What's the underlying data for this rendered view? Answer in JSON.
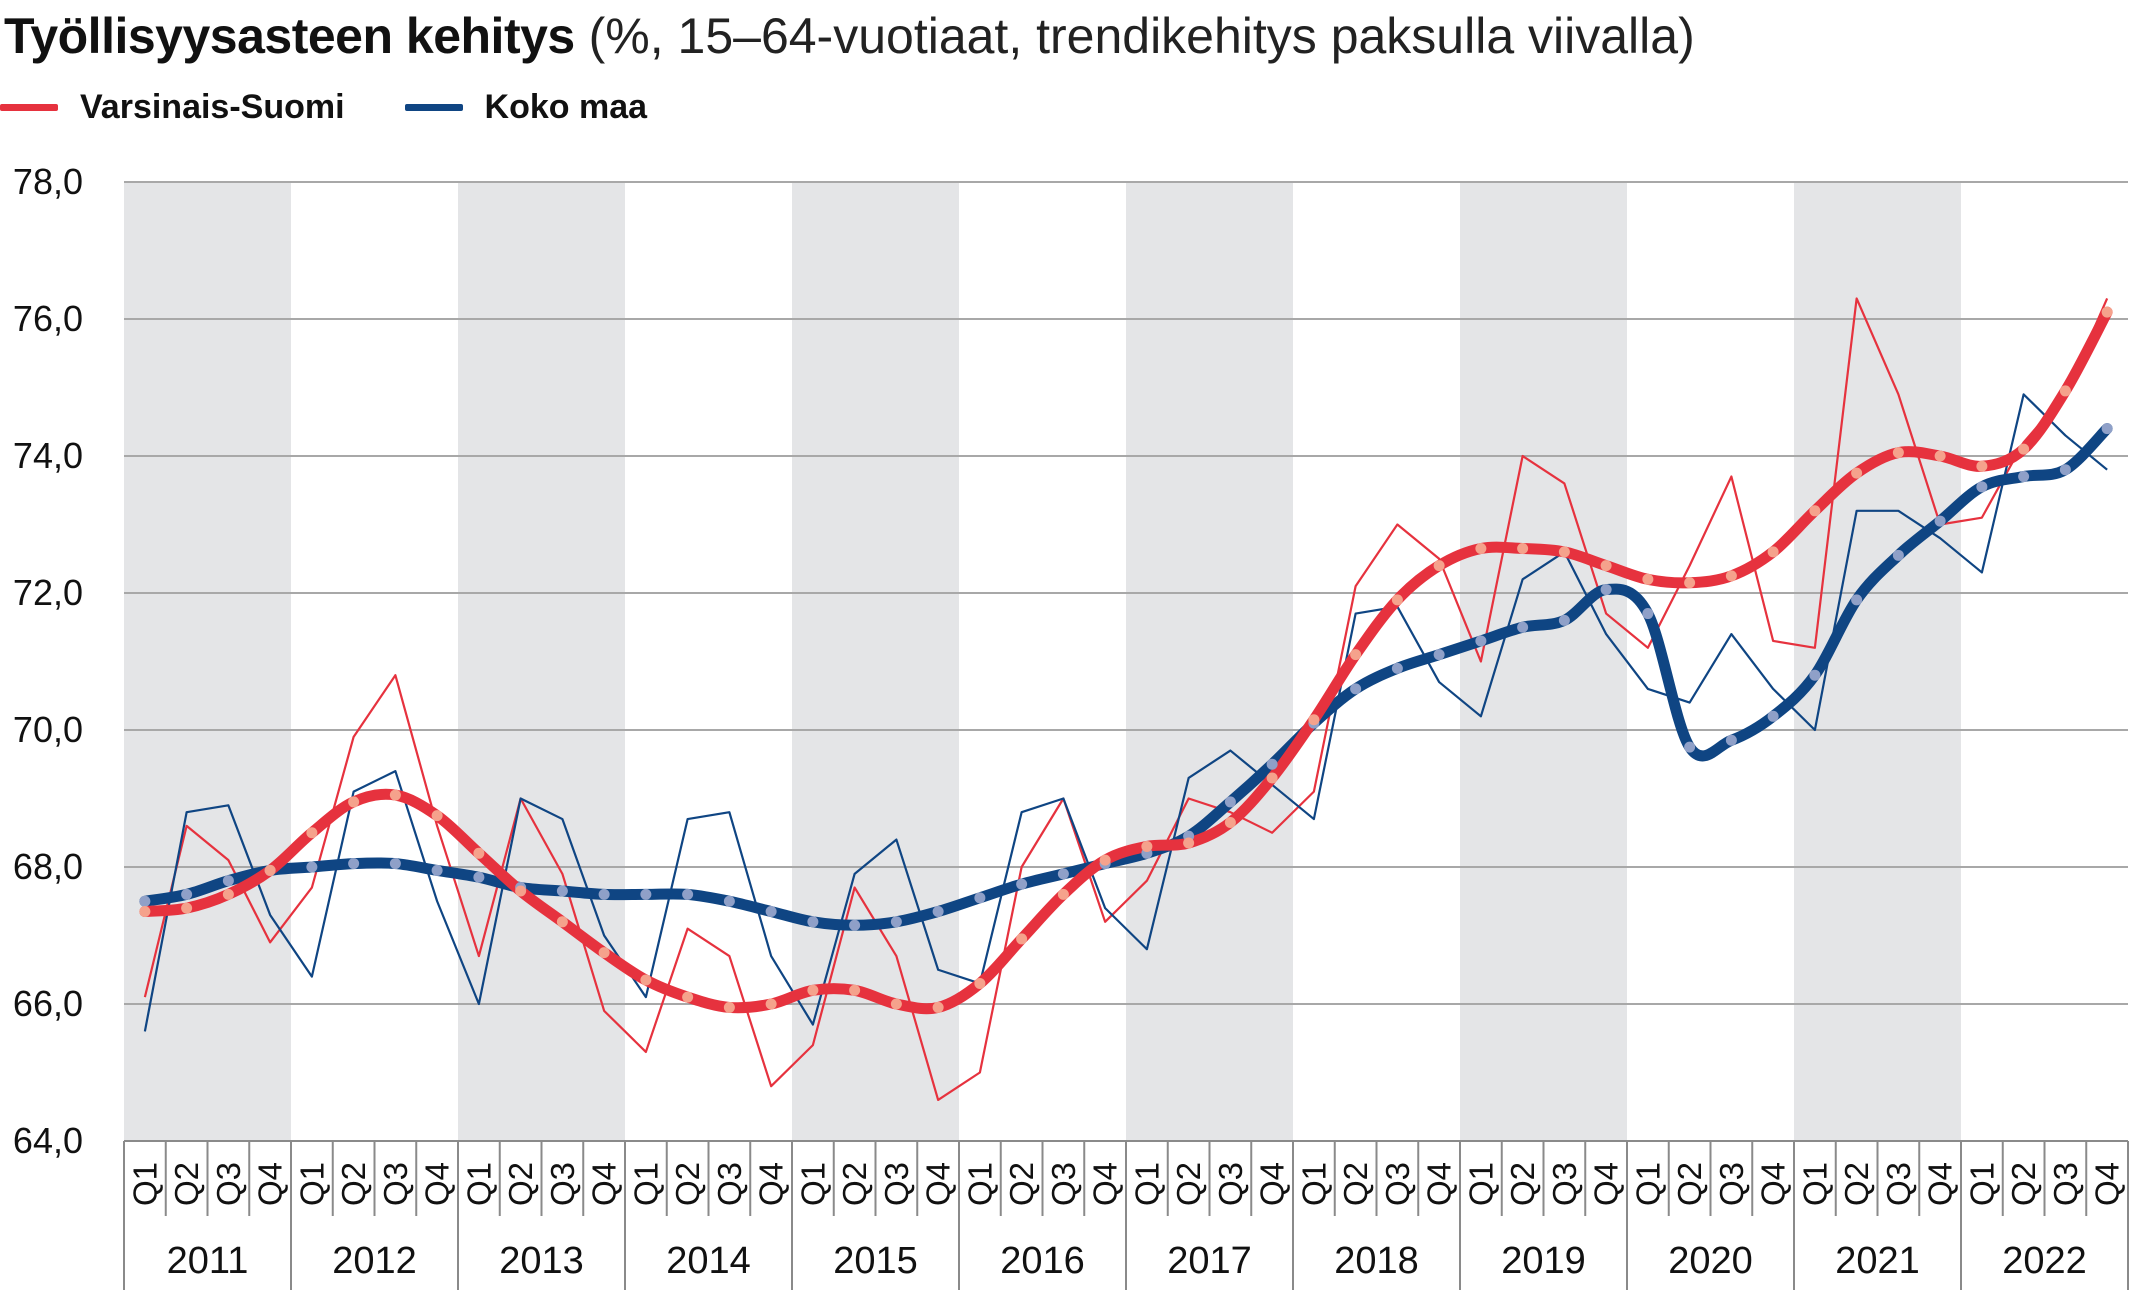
{
  "title": {
    "main": "Työllisyysasteen kehitys",
    "sub": "(%, 15–64-vuotiaat, trendikehitys paksulla viivalla)"
  },
  "colors": {
    "series_red": "#e6323e",
    "series_blue": "#0f4583",
    "band": "#e4e5e7",
    "grid": "#a8a8a8",
    "marker_red": "#f5a28c",
    "marker_blue": "#8fa0c8"
  },
  "chart_data": {
    "type": "line",
    "ylim": [
      64,
      78
    ],
    "yticks": [
      "64,0",
      "66,0",
      "68,0",
      "70,0",
      "72,0",
      "74,0",
      "76,0",
      "78,0"
    ],
    "grid": true,
    "legend": "top-left",
    "years": [
      "2011",
      "2012",
      "2013",
      "2014",
      "2015",
      "2016",
      "2017",
      "2018",
      "2019",
      "2020",
      "2021",
      "2022"
    ],
    "quarters": [
      "Q1",
      "Q2",
      "Q3",
      "Q4"
    ],
    "series": [
      {
        "name": "Varsinais-Suomi",
        "color": "#e6323e",
        "values": [
          66.1,
          68.6,
          68.1,
          66.9,
          67.7,
          69.9,
          70.8,
          68.6,
          66.7,
          69.0,
          67.9,
          65.9,
          65.3,
          67.1,
          66.7,
          64.8,
          65.4,
          67.7,
          66.7,
          64.6,
          65.0,
          68.0,
          69.0,
          67.2,
          67.8,
          69.0,
          68.8,
          68.5,
          69.1,
          72.1,
          73.0,
          72.5,
          71.0,
          74.0,
          73.6,
          71.7,
          71.2,
          72.4,
          73.7,
          71.3,
          71.2,
          76.3,
          74.9,
          73.0,
          73.1,
          74.2,
          74.9,
          76.3
        ],
        "trend": [
          67.35,
          67.4,
          67.6,
          67.95,
          68.5,
          68.95,
          69.05,
          68.75,
          68.2,
          67.65,
          67.2,
          66.75,
          66.35,
          66.1,
          65.95,
          66.0,
          66.2,
          66.2,
          66.0,
          65.95,
          66.3,
          66.95,
          67.6,
          68.1,
          68.3,
          68.35,
          68.65,
          69.3,
          70.15,
          71.1,
          71.9,
          72.4,
          72.65,
          72.65,
          72.6,
          72.4,
          72.2,
          72.15,
          72.25,
          72.6,
          73.2,
          73.75,
          74.05,
          74.0,
          73.85,
          74.1,
          74.95,
          76.1
        ]
      },
      {
        "name": "Koko maa",
        "color": "#0f4583",
        "values": [
          65.6,
          68.8,
          68.9,
          67.3,
          66.4,
          69.1,
          69.4,
          67.5,
          66.0,
          69.0,
          68.7,
          67.0,
          66.1,
          68.7,
          68.8,
          66.7,
          65.7,
          67.9,
          68.4,
          66.5,
          66.3,
          68.8,
          69.0,
          67.4,
          66.8,
          69.3,
          69.7,
          69.2,
          68.7,
          71.7,
          71.8,
          70.7,
          70.2,
          72.2,
          72.6,
          71.4,
          70.6,
          70.4,
          71.4,
          70.6,
          70.0,
          73.2,
          73.2,
          72.8,
          72.3,
          74.9,
          74.3,
          73.8
        ],
        "trend": [
          67.5,
          67.6,
          67.8,
          67.95,
          68.0,
          68.05,
          68.05,
          67.95,
          67.85,
          67.7,
          67.65,
          67.6,
          67.6,
          67.6,
          67.5,
          67.35,
          67.2,
          67.15,
          67.2,
          67.35,
          67.55,
          67.75,
          67.9,
          68.05,
          68.2,
          68.45,
          68.95,
          69.5,
          70.1,
          70.6,
          70.9,
          71.1,
          71.3,
          71.5,
          71.6,
          72.05,
          71.7,
          69.75,
          69.85,
          70.2,
          70.8,
          71.9,
          72.55,
          73.05,
          73.55,
          73.7,
          73.8,
          74.4
        ]
      }
    ]
  }
}
